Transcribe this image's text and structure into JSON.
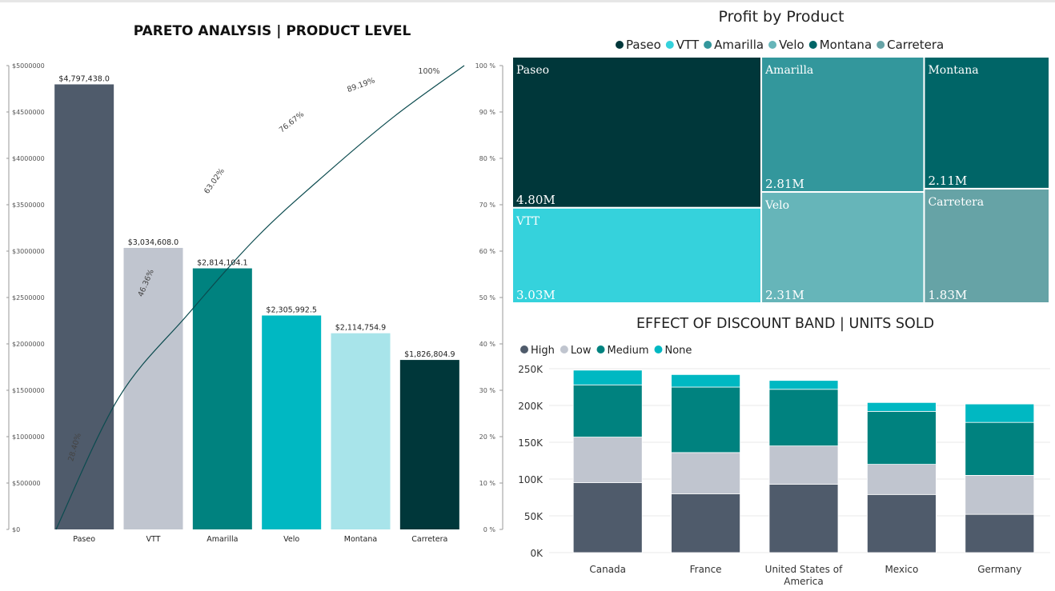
{
  "chart_data": [
    {
      "id": "pareto",
      "type": "bar",
      "title": "PARETO ANALYSIS | PRODUCT LEVEL",
      "categories": [
        "Paseo",
        "VTT",
        "Amarilla",
        "Velo",
        "Montana",
        "Carretera"
      ],
      "values": [
        4797438.0,
        3034608.0,
        2814104.1,
        2305992.5,
        2114754.9,
        1826804.9
      ],
      "value_labels": [
        "$4,797,438.0",
        "$3,034,608.0",
        "$2,814,104.1",
        "$2,305,992.5",
        "$2,114,754.9",
        "$1,826,804.9"
      ],
      "colors": [
        "#4f5b6b",
        "#c0c5cf",
        "#00827f",
        "#00b8c2",
        "#a8e4ea",
        "#00373a"
      ],
      "ylim": [
        0,
        5000000
      ],
      "y_ticks": [
        0,
        500000,
        1000000,
        1500000,
        2000000,
        2500000,
        3000000,
        3500000,
        4000000,
        4500000,
        5000000
      ],
      "y_tick_labels": [
        "$0",
        "$500000",
        "$1000000",
        "$1500000",
        "$2000000",
        "$2500000",
        "$3000000",
        "$3500000",
        "$4000000",
        "$4500000",
        "$5000000"
      ],
      "cumulative": {
        "type": "line",
        "color": "#0b4b4f",
        "values": [
          28.4,
          46.36,
          63.02,
          76.67,
          89.19,
          100
        ],
        "labels": [
          "28.40%",
          "46.36%",
          "63.02%",
          "76.67%",
          "89.19%",
          "100%"
        ],
        "ylim": [
          0,
          100
        ],
        "y_ticks": [
          0,
          10,
          20,
          30,
          40,
          50,
          60,
          70,
          80,
          90,
          100
        ],
        "y_tick_labels": [
          "0 %",
          "10 %",
          "20 %",
          "30 %",
          "40 %",
          "50 %",
          "60 %",
          "70 %",
          "80 %",
          "90 %",
          "100 %"
        ]
      }
    },
    {
      "id": "profit-by-product",
      "type": "treemap",
      "title": "Profit by Product",
      "legend_position": "top-center",
      "items": [
        {
          "name": "Paseo",
          "value": 4.8,
          "label": "4.80M",
          "color": "#00373a"
        },
        {
          "name": "VTT",
          "value": 3.03,
          "label": "3.03M",
          "color": "#35d2dc"
        },
        {
          "name": "Amarilla",
          "value": 2.81,
          "label": "2.81M",
          "color": "#33979c"
        },
        {
          "name": "Velo",
          "value": 2.31,
          "label": "2.31M",
          "color": "#66b5b9"
        },
        {
          "name": "Montana",
          "value": 2.11,
          "label": "2.11M",
          "color": "#006567"
        },
        {
          "name": "Carretera",
          "value": 1.83,
          "label": "1.83M",
          "color": "#66a3a6"
        }
      ]
    },
    {
      "id": "discount-band",
      "type": "bar",
      "stacked": true,
      "title": "EFFECT OF DISCOUNT BAND | UNITS SOLD",
      "legend_position": "top-left",
      "categories": [
        "Canada",
        "France",
        "United States of America",
        "Mexico",
        "Germany"
      ],
      "series": [
        {
          "name": "High",
          "color": "#4f5b6b",
          "values": [
            95000,
            80000,
            93000,
            79000,
            52000
          ]
        },
        {
          "name": "Low",
          "color": "#c0c5cf",
          "values": [
            62000,
            56000,
            52000,
            41000,
            53000
          ]
        },
        {
          "name": "Medium",
          "color": "#00827f",
          "values": [
            71000,
            89000,
            77000,
            72000,
            72000
          ]
        },
        {
          "name": "None",
          "color": "#00b8c2",
          "values": [
            20000,
            17000,
            12000,
            12000,
            25000
          ]
        }
      ],
      "ylim": [
        0,
        250000
      ],
      "y_ticks": [
        0,
        50000,
        100000,
        150000,
        200000,
        250000
      ],
      "y_tick_labels": [
        "0K",
        "50K",
        "100K",
        "150K",
        "200K",
        "250K"
      ],
      "grid": true
    }
  ]
}
